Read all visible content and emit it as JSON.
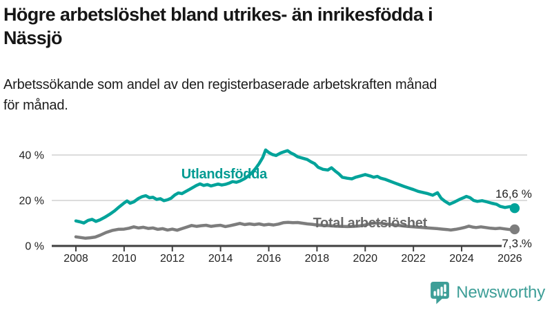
{
  "header": {
    "title": "Högre arbetslöshet bland utrikes- än inrikesfödda i\nNässjö",
    "subtitle": "Arbetssökande som andel av den registerbaserade arbetskraften månad\nför månad."
  },
  "footer": {
    "brand": "Newsworthy"
  },
  "colors": {
    "accent_teal": "#00a39a",
    "line_gray": "#7d7d7d",
    "grid": "#dcdcdc",
    "axis": "#3f3f3f",
    "text": "#222222",
    "brand_teal": "#3d9e97"
  },
  "chart_data": {
    "type": "line",
    "title": "Högre arbetslöshet bland utrikes- än inrikesfödda i Nässjö",
    "subtitle": "Arbetssökande som andel av den registerbaserade arbetskraften månad för månad.",
    "xlabel": "",
    "ylabel": "",
    "grid": true,
    "legend_position": "inline-labels",
    "xlim": [
      2007.0,
      2026.72
    ],
    "ylim": [
      0,
      45
    ],
    "x_ticks": [
      {
        "value": 2008,
        "label": "2008"
      },
      {
        "value": 2010,
        "label": "2010"
      },
      {
        "value": 2012,
        "label": "2012"
      },
      {
        "value": 2014,
        "label": "2014"
      },
      {
        "value": 2016,
        "label": "2016"
      },
      {
        "value": 2018,
        "label": "2018"
      },
      {
        "value": 2020,
        "label": "2020"
      },
      {
        "value": 2022,
        "label": "2022"
      },
      {
        "value": 2024,
        "label": "2024"
      },
      {
        "value": 2026,
        "label": "2026"
      }
    ],
    "y_ticks": [
      {
        "value": 0,
        "label": "0 %"
      },
      {
        "value": 20,
        "label": "20 %"
      },
      {
        "value": 40,
        "label": "40 %"
      }
    ],
    "series": [
      {
        "name": "Utlandsfödda",
        "color": "#00a39a",
        "label_color": "#009b92",
        "end_label": "16,6 %",
        "end_value": 16.6,
        "label_anchor": {
          "x": 2014.15,
          "y": 31.8
        },
        "points": [
          [
            2008.0,
            11.0
          ],
          [
            2008.17,
            10.6
          ],
          [
            2008.33,
            10.1
          ],
          [
            2008.5,
            11.2
          ],
          [
            2008.67,
            11.7
          ],
          [
            2008.83,
            10.8
          ],
          [
            2009.0,
            11.5
          ],
          [
            2009.2,
            12.6
          ],
          [
            2009.4,
            13.9
          ],
          [
            2009.6,
            15.4
          ],
          [
            2009.8,
            17.2
          ],
          [
            2010.0,
            18.9
          ],
          [
            2010.12,
            19.8
          ],
          [
            2010.25,
            18.8
          ],
          [
            2010.4,
            19.4
          ],
          [
            2010.6,
            20.9
          ],
          [
            2010.75,
            21.7
          ],
          [
            2010.9,
            22.1
          ],
          [
            2011.05,
            21.2
          ],
          [
            2011.2,
            21.4
          ],
          [
            2011.35,
            20.5
          ],
          [
            2011.5,
            20.8
          ],
          [
            2011.65,
            19.9
          ],
          [
            2011.8,
            20.3
          ],
          [
            2011.95,
            21.0
          ],
          [
            2012.1,
            22.4
          ],
          [
            2012.25,
            23.3
          ],
          [
            2012.4,
            23.0
          ],
          [
            2012.55,
            23.9
          ],
          [
            2012.7,
            24.8
          ],
          [
            2012.85,
            25.7
          ],
          [
            2013.0,
            26.6
          ],
          [
            2013.15,
            27.3
          ],
          [
            2013.3,
            26.6
          ],
          [
            2013.45,
            27.0
          ],
          [
            2013.6,
            26.4
          ],
          [
            2013.75,
            26.8
          ],
          [
            2013.9,
            27.2
          ],
          [
            2014.05,
            26.8
          ],
          [
            2014.2,
            27.1
          ],
          [
            2014.35,
            27.6
          ],
          [
            2014.5,
            28.3
          ],
          [
            2014.65,
            28.0
          ],
          [
            2014.8,
            28.5
          ],
          [
            2015.0,
            29.6
          ],
          [
            2015.15,
            30.8
          ],
          [
            2015.3,
            32.2
          ],
          [
            2015.45,
            34.0
          ],
          [
            2015.6,
            36.2
          ],
          [
            2015.75,
            38.9
          ],
          [
            2015.87,
            42.2
          ],
          [
            2016.0,
            41.1
          ],
          [
            2016.15,
            40.2
          ],
          [
            2016.3,
            39.8
          ],
          [
            2016.5,
            40.9
          ],
          [
            2016.65,
            41.5
          ],
          [
            2016.78,
            41.9
          ],
          [
            2016.9,
            41.0
          ],
          [
            2017.05,
            40.2
          ],
          [
            2017.2,
            39.2
          ],
          [
            2017.4,
            38.6
          ],
          [
            2017.6,
            38.0
          ],
          [
            2017.75,
            37.0
          ],
          [
            2017.9,
            36.2
          ],
          [
            2018.05,
            34.6
          ],
          [
            2018.25,
            33.7
          ],
          [
            2018.45,
            33.4
          ],
          [
            2018.6,
            34.4
          ],
          [
            2018.75,
            33.0
          ],
          [
            2018.9,
            31.8
          ],
          [
            2019.05,
            30.2
          ],
          [
            2019.25,
            29.8
          ],
          [
            2019.45,
            29.5
          ],
          [
            2019.6,
            30.2
          ],
          [
            2019.8,
            30.8
          ],
          [
            2020.0,
            31.4
          ],
          [
            2020.2,
            30.8
          ],
          [
            2020.35,
            30.2
          ],
          [
            2020.5,
            30.6
          ],
          [
            2020.65,
            29.8
          ],
          [
            2020.85,
            29.2
          ],
          [
            2021.0,
            28.6
          ],
          [
            2021.2,
            27.8
          ],
          [
            2021.4,
            27.0
          ],
          [
            2021.6,
            26.2
          ],
          [
            2021.8,
            25.5
          ],
          [
            2022.0,
            24.8
          ],
          [
            2022.2,
            24.0
          ],
          [
            2022.4,
            23.5
          ],
          [
            2022.6,
            23.0
          ],
          [
            2022.8,
            22.3
          ],
          [
            2023.0,
            23.4
          ],
          [
            2023.15,
            21.0
          ],
          [
            2023.3,
            19.7
          ],
          [
            2023.5,
            18.4
          ],
          [
            2023.7,
            19.3
          ],
          [
            2023.9,
            20.4
          ],
          [
            2024.1,
            21.3
          ],
          [
            2024.2,
            21.8
          ],
          [
            2024.35,
            21.2
          ],
          [
            2024.5,
            20.0
          ],
          [
            2024.65,
            19.6
          ],
          [
            2024.85,
            19.9
          ],
          [
            2025.05,
            19.4
          ],
          [
            2025.25,
            18.8
          ],
          [
            2025.45,
            18.3
          ],
          [
            2025.6,
            17.4
          ],
          [
            2025.8,
            16.9
          ],
          [
            2026.0,
            17.3
          ],
          [
            2026.2,
            16.6
          ]
        ]
      },
      {
        "name": "Total arbetslöshet",
        "color": "#7d7d7d",
        "label_color": "#6a6a6a",
        "end_label": "7,3 %",
        "end_value": 7.3,
        "label_anchor": {
          "x": 2020.2,
          "y": 10.3
        },
        "points": [
          [
            2008.0,
            4.0
          ],
          [
            2008.2,
            3.7
          ],
          [
            2008.4,
            3.4
          ],
          [
            2008.6,
            3.6
          ],
          [
            2008.8,
            3.9
          ],
          [
            2009.0,
            4.7
          ],
          [
            2009.25,
            5.9
          ],
          [
            2009.5,
            6.8
          ],
          [
            2009.75,
            7.3
          ],
          [
            2010.0,
            7.4
          ],
          [
            2010.2,
            7.8
          ],
          [
            2010.4,
            8.4
          ],
          [
            2010.6,
            7.9
          ],
          [
            2010.8,
            8.2
          ],
          [
            2011.0,
            7.7
          ],
          [
            2011.2,
            7.9
          ],
          [
            2011.4,
            7.3
          ],
          [
            2011.6,
            7.6
          ],
          [
            2011.8,
            7.0
          ],
          [
            2012.0,
            7.4
          ],
          [
            2012.2,
            6.9
          ],
          [
            2012.4,
            7.6
          ],
          [
            2012.6,
            8.3
          ],
          [
            2012.8,
            9.0
          ],
          [
            2013.0,
            8.6
          ],
          [
            2013.2,
            8.9
          ],
          [
            2013.4,
            9.1
          ],
          [
            2013.6,
            8.6
          ],
          [
            2013.8,
            8.9
          ],
          [
            2014.0,
            9.1
          ],
          [
            2014.2,
            8.5
          ],
          [
            2014.4,
            8.9
          ],
          [
            2014.6,
            9.4
          ],
          [
            2014.8,
            9.9
          ],
          [
            2015.0,
            9.4
          ],
          [
            2015.2,
            9.7
          ],
          [
            2015.4,
            9.4
          ],
          [
            2015.6,
            9.7
          ],
          [
            2015.8,
            9.2
          ],
          [
            2016.0,
            9.5
          ],
          [
            2016.2,
            9.2
          ],
          [
            2016.4,
            9.6
          ],
          [
            2016.6,
            10.2
          ],
          [
            2016.8,
            10.4
          ],
          [
            2017.0,
            10.2
          ],
          [
            2017.2,
            10.3
          ],
          [
            2017.4,
            10.0
          ],
          [
            2017.6,
            9.7
          ],
          [
            2017.8,
            9.5
          ],
          [
            2018.0,
            9.2
          ],
          [
            2018.25,
            9.0
          ],
          [
            2018.5,
            8.9
          ],
          [
            2018.75,
            8.7
          ],
          [
            2019.0,
            8.6
          ],
          [
            2019.25,
            8.5
          ],
          [
            2019.5,
            8.6
          ],
          [
            2019.75,
            8.8
          ],
          [
            2020.0,
            9.2
          ],
          [
            2020.25,
            9.9
          ],
          [
            2020.5,
            10.1
          ],
          [
            2020.75,
            9.8
          ],
          [
            2021.0,
            9.5
          ],
          [
            2021.25,
            9.2
          ],
          [
            2021.5,
            8.9
          ],
          [
            2021.75,
            8.6
          ],
          [
            2022.0,
            8.4
          ],
          [
            2022.25,
            8.2
          ],
          [
            2022.5,
            8.0
          ],
          [
            2022.75,
            7.8
          ],
          [
            2023.0,
            7.6
          ],
          [
            2023.2,
            7.4
          ],
          [
            2023.4,
            7.2
          ],
          [
            2023.55,
            7.0
          ],
          [
            2023.75,
            7.3
          ],
          [
            2023.95,
            7.7
          ],
          [
            2024.15,
            8.2
          ],
          [
            2024.3,
            8.7
          ],
          [
            2024.45,
            8.3
          ],
          [
            2024.6,
            8.1
          ],
          [
            2024.8,
            8.4
          ],
          [
            2025.0,
            8.1
          ],
          [
            2025.2,
            7.8
          ],
          [
            2025.4,
            7.6
          ],
          [
            2025.6,
            7.8
          ],
          [
            2025.8,
            7.5
          ],
          [
            2026.0,
            7.2
          ],
          [
            2026.2,
            7.3
          ]
        ]
      }
    ]
  }
}
